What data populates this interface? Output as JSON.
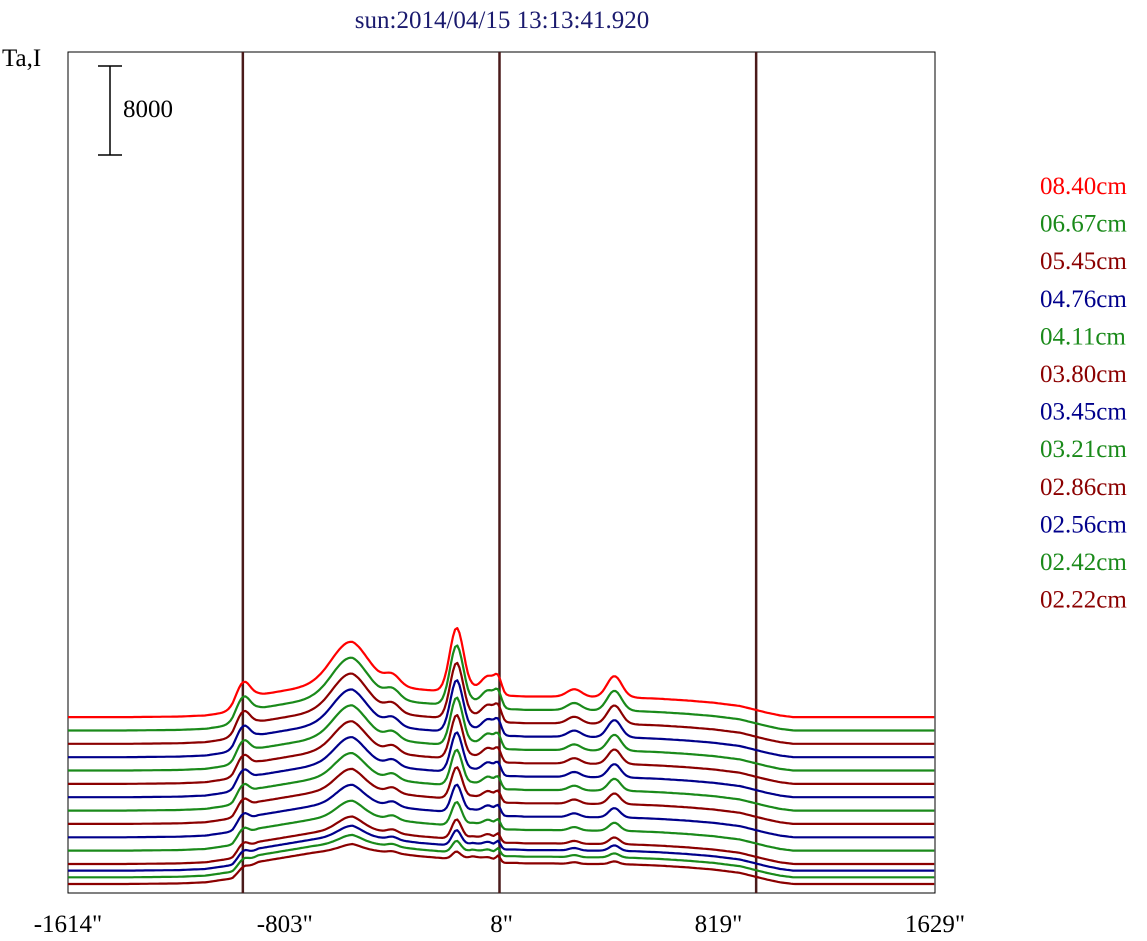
{
  "chart_data": {
    "type": "line",
    "title": "sun:2014/04/15 13:13:41.920",
    "ylabel": "Ta,I",
    "xlabel": "",
    "xlim": [
      -1614,
      1629
    ],
    "x_ticks": [
      {
        "value": -1614,
        "label": "-1614\""
      },
      {
        "value": -803,
        "label": "-803\""
      },
      {
        "value": 8,
        "label": "8\""
      },
      {
        "value": 819,
        "label": "819\""
      },
      {
        "value": 1629,
        "label": "1629\""
      }
    ],
    "vertical_lines": [
      -960,
      0,
      960
    ],
    "scale_bar": {
      "value": 8000,
      "label": "8000"
    },
    "profiles": [
      {
        "label": "08.40cm",
        "color": "#ff0000",
        "offset": 15000
      },
      {
        "label": "06.67cm",
        "color": "#1a8a1a",
        "offset": 13800
      },
      {
        "label": "05.45cm",
        "color": "#8b0000",
        "offset": 12600
      },
      {
        "label": "04.76cm",
        "color": "#00008b",
        "offset": 11400
      },
      {
        "label": "04.11cm",
        "color": "#1a8a1a",
        "offset": 10200
      },
      {
        "label": "03.80cm",
        "color": "#8b0000",
        "offset": 9000
      },
      {
        "label": "03.45cm",
        "color": "#00008b",
        "offset": 7800
      },
      {
        "label": "03.21cm",
        "color": "#1a8a1a",
        "offset": 6600
      },
      {
        "label": "02.86cm",
        "color": "#8b0000",
        "offset": 5400
      },
      {
        "label": "02.56cm",
        "color": "#00008b",
        "offset": 4200
      },
      {
        "label": "02.42cm",
        "color": "#1a8a1a",
        "offset": 3000
      },
      {
        "label": "02.22cm",
        "color": "#8b0000",
        "offset": 1800
      }
    ],
    "extra_profiles": [
      {
        "color": "#00008b",
        "offset": 1200
      },
      {
        "color": "#1a8a1a",
        "offset": 600
      },
      {
        "color": "#8b0000",
        "offset": 0
      }
    ],
    "disk_profile": {
      "x": [
        -1614,
        -1550,
        -1400,
        -1200,
        -1100,
        -1000,
        -950,
        -900,
        -850,
        -800,
        -750,
        -700,
        -600,
        -550,
        -500,
        -400,
        -300,
        -200,
        -150,
        -100,
        -60,
        -20,
        0,
        20,
        60,
        100,
        200,
        300,
        400,
        500,
        600,
        700,
        800,
        900,
        950,
        1000,
        1050,
        1100,
        1200,
        1400,
        1629
      ],
      "base": [
        0,
        0,
        0,
        50,
        150,
        500,
        1400,
        2000,
        2200,
        2400,
        2600,
        2800,
        3100,
        3300,
        3100,
        2800,
        2500,
        2300,
        2200,
        2500,
        2300,
        2100,
        2000,
        1900,
        1900,
        1850,
        1850,
        1800,
        1800,
        1750,
        1650,
        1500,
        1300,
        1000,
        700,
        400,
        150,
        0,
        0,
        0,
        0
      ]
    },
    "peaks": [
      {
        "x": -960,
        "amp_top": 1900,
        "amp_bottom": 300
      },
      {
        "x": -560,
        "amp_top": 3500,
        "amp_bottom": 300
      },
      {
        "x": -400,
        "amp_top": 900,
        "amp_bottom": 150
      },
      {
        "x": -200,
        "amp_top": 0,
        "amp_bottom": 0
      },
      {
        "x": -160,
        "amp_top": 5800,
        "amp_bottom": 700
      },
      {
        "x": -40,
        "amp_top": 1500,
        "amp_bottom": 200
      },
      {
        "x": -5,
        "amp_top": 1100,
        "amp_bottom": 500
      },
      {
        "x": 280,
        "amp_top": 700,
        "amp_bottom": 150
      },
      {
        "x": 430,
        "amp_top": 1900,
        "amp_bottom": 250
      }
    ]
  }
}
